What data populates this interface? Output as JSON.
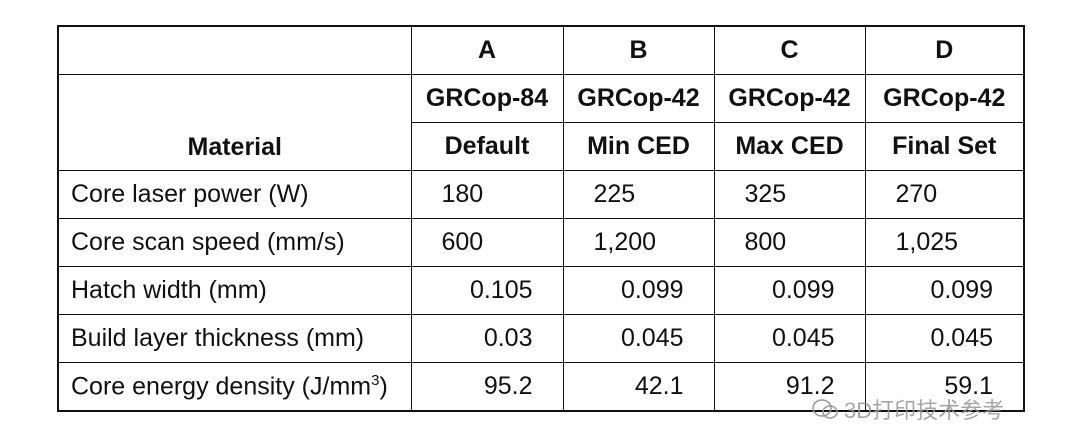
{
  "table": {
    "columns": [
      "A",
      "B",
      "C",
      "D"
    ],
    "header_rows": [
      [
        "GRCop-84",
        "GRCop-42",
        "GRCop-42",
        "GRCop-42"
      ],
      [
        "Default",
        "Min CED",
        "Max CED",
        "Final Set"
      ]
    ],
    "row_header": "Material",
    "rows": [
      {
        "label": "Core laser power (W)",
        "values": [
          "180",
          "225",
          "325",
          "270"
        ]
      },
      {
        "label": "Core scan speed (mm/s)",
        "values": [
          "600",
          "1,200",
          "800",
          "1,025"
        ]
      },
      {
        "label": "Hatch width (mm)",
        "values": [
          "0.105",
          "0.099",
          "0.099",
          "0.099"
        ]
      },
      {
        "label": "Build layer thickness (mm)",
        "values": [
          "0.03",
          "0.045",
          "0.045",
          "0.045"
        ]
      },
      {
        "label": "Core energy density (J/mm",
        "label_sup": "3",
        "label_end": ")",
        "values": [
          "95.2",
          "42.1",
          "91.2",
          "59.1"
        ]
      }
    ]
  },
  "watermark": "3D打印技术参考"
}
